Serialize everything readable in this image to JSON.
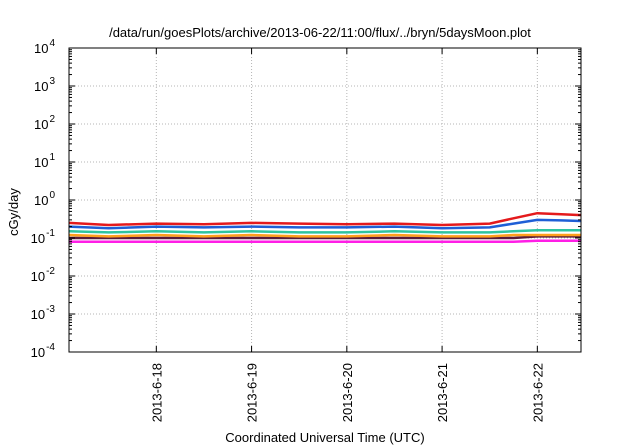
{
  "chart_data": {
    "type": "line",
    "title": "/data/run/goesPlots/archive/2013-06-22/11:00/flux/../bryn/5daysMoon.plot",
    "xlabel": "Coordinated Universal Time (UTC)",
    "ylabel": "cGy/day",
    "yscale": "log",
    "ylim": [
      0.0001,
      10000
    ],
    "xlim": [
      "2013-06-17 02:00",
      "2013-06-22 11:00"
    ],
    "grid": true,
    "legend": "none",
    "x_ticks": [
      "2013-6-18",
      "2013-6-19",
      "2013-6-20",
      "2013-6-21",
      "2013-6-22"
    ],
    "y_ticks": [
      {
        "base": "10",
        "exp": "-4"
      },
      {
        "base": "10",
        "exp": "-3"
      },
      {
        "base": "10",
        "exp": "-2"
      },
      {
        "base": "10",
        "exp": "-1"
      },
      {
        "base": "10",
        "exp": "0"
      },
      {
        "base": "10",
        "exp": "1"
      },
      {
        "base": "10",
        "exp": "2"
      },
      {
        "base": "10",
        "exp": "3"
      },
      {
        "base": "10",
        "exp": "4"
      }
    ],
    "series": [
      {
        "color": "#e41a1c",
        "x": [
          "2013-06-17 02:00",
          "2013-06-17 12:00",
          "2013-06-18 00:00",
          "2013-06-18 12:00",
          "2013-06-19 00:00",
          "2013-06-19 12:00",
          "2013-06-20 00:00",
          "2013-06-20 12:00",
          "2013-06-21 00:00",
          "2013-06-21 12:00",
          "2013-06-21 18:00",
          "2013-06-22 00:00",
          "2013-06-22 06:00",
          "2013-06-22 11:00"
        ],
        "values": [
          0.25,
          0.22,
          0.24,
          0.23,
          0.25,
          0.24,
          0.23,
          0.24,
          0.22,
          0.24,
          0.33,
          0.45,
          0.42,
          0.4
        ]
      },
      {
        "color": "#1f5fd6",
        "x": [
          "2013-06-17 02:00",
          "2013-06-17 12:00",
          "2013-06-18 00:00",
          "2013-06-18 12:00",
          "2013-06-19 00:00",
          "2013-06-19 12:00",
          "2013-06-20 00:00",
          "2013-06-20 12:00",
          "2013-06-21 00:00",
          "2013-06-21 12:00",
          "2013-06-21 18:00",
          "2013-06-22 00:00",
          "2013-06-22 06:00",
          "2013-06-22 11:00"
        ],
        "values": [
          0.2,
          0.18,
          0.2,
          0.19,
          0.2,
          0.19,
          0.19,
          0.2,
          0.18,
          0.19,
          0.24,
          0.3,
          0.29,
          0.28
        ]
      },
      {
        "color": "#2ec4a0",
        "x": [
          "2013-06-17 02:00",
          "2013-06-17 12:00",
          "2013-06-18 00:00",
          "2013-06-18 12:00",
          "2013-06-19 00:00",
          "2013-06-19 12:00",
          "2013-06-20 00:00",
          "2013-06-20 12:00",
          "2013-06-21 00:00",
          "2013-06-21 12:00",
          "2013-06-21 18:00",
          "2013-06-22 00:00",
          "2013-06-22 06:00",
          "2013-06-22 11:00"
        ],
        "values": [
          0.15,
          0.14,
          0.15,
          0.14,
          0.15,
          0.14,
          0.14,
          0.15,
          0.14,
          0.14,
          0.15,
          0.16,
          0.16,
          0.16
        ]
      },
      {
        "color": "#ff9f1c",
        "x": [
          "2013-06-17 02:00",
          "2013-06-17 12:00",
          "2013-06-18 00:00",
          "2013-06-18 12:00",
          "2013-06-19 00:00",
          "2013-06-19 12:00",
          "2013-06-20 00:00",
          "2013-06-20 12:00",
          "2013-06-21 00:00",
          "2013-06-21 12:00",
          "2013-06-21 18:00",
          "2013-06-22 00:00",
          "2013-06-22 06:00",
          "2013-06-22 11:00"
        ],
        "values": [
          0.12,
          0.11,
          0.12,
          0.11,
          0.12,
          0.11,
          0.11,
          0.12,
          0.11,
          0.11,
          0.12,
          0.12,
          0.12,
          0.12
        ]
      },
      {
        "color": "#5a1a3a",
        "x": [
          "2013-06-17 02:00",
          "2013-06-17 12:00",
          "2013-06-18 00:00",
          "2013-06-18 12:00",
          "2013-06-19 00:00",
          "2013-06-19 12:00",
          "2013-06-20 00:00",
          "2013-06-20 12:00",
          "2013-06-21 00:00",
          "2013-06-21 12:00",
          "2013-06-21 18:00",
          "2013-06-22 00:00",
          "2013-06-22 06:00",
          "2013-06-22 11:00"
        ],
        "values": [
          0.1,
          0.1,
          0.1,
          0.1,
          0.1,
          0.1,
          0.1,
          0.1,
          0.1,
          0.1,
          0.1,
          0.11,
          0.11,
          0.11
        ]
      },
      {
        "color": "#ff1ee6",
        "x": [
          "2013-06-17 02:00",
          "2013-06-17 12:00",
          "2013-06-18 00:00",
          "2013-06-18 12:00",
          "2013-06-19 00:00",
          "2013-06-19 12:00",
          "2013-06-20 00:00",
          "2013-06-20 12:00",
          "2013-06-21 00:00",
          "2013-06-21 12:00",
          "2013-06-21 18:00",
          "2013-06-22 00:00",
          "2013-06-22 06:00",
          "2013-06-22 11:00"
        ],
        "values": [
          0.08,
          0.08,
          0.08,
          0.08,
          0.08,
          0.08,
          0.08,
          0.08,
          0.08,
          0.08,
          0.08,
          0.085,
          0.085,
          0.085
        ]
      }
    ]
  }
}
